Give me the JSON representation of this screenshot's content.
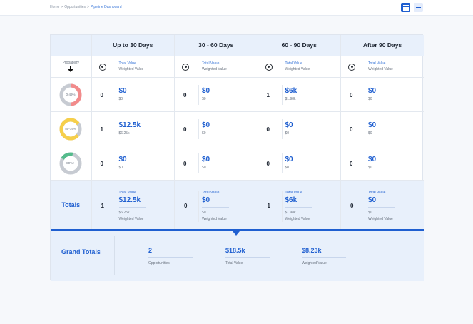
{
  "breadcrumb": {
    "home": "Home",
    "section": "Opportunities",
    "current": "Pipeline Dashboard",
    "sep": ">"
  },
  "view_toggle": {
    "active": "grid",
    "icons": [
      "grid-icon",
      "list-icon"
    ]
  },
  "colors": {
    "accent": "#1f5fd0",
    "red": "#f28b8b",
    "yellow": "#f6cf4a",
    "green": "#55bb8c",
    "track": "#c7cbd2"
  },
  "table": {
    "corner_label": "Probability",
    "buckets": [
      "Up to 30 Days",
      "30 - 60 Days",
      "60 - 90 Days",
      "After 90 Days"
    ],
    "sub_labels": {
      "total_value": "Total Value",
      "weighted_value": "Weighted Value"
    },
    "rows": [
      {
        "band": "0-49%",
        "fill": 0.49,
        "color": "#f28b8b",
        "cells": [
          {
            "count": "0",
            "total": "$0",
            "weighted": "$0"
          },
          {
            "count": "0",
            "total": "$0",
            "weighted": "$0"
          },
          {
            "count": "1",
            "total": "$6k",
            "weighted": "$1.98k"
          },
          {
            "count": "0",
            "total": "$0",
            "weighted": "$0"
          }
        ]
      },
      {
        "band": "50-79%",
        "fill": 0.79,
        "color": "#f6cf4a",
        "cells": [
          {
            "count": "1",
            "total": "$12.5k",
            "weighted": "$6.25k"
          },
          {
            "count": "0",
            "total": "$0",
            "weighted": "$0"
          },
          {
            "count": "0",
            "total": "$0",
            "weighted": "$0"
          },
          {
            "count": "0",
            "total": "$0",
            "weighted": "$0"
          }
        ]
      },
      {
        "band": "80%+",
        "fill": 0.2,
        "color": "#55bb8c",
        "cells": [
          {
            "count": "0",
            "total": "$0",
            "weighted": "$0"
          },
          {
            "count": "0",
            "total": "$0",
            "weighted": "$0"
          },
          {
            "count": "0",
            "total": "$0",
            "weighted": "$0"
          },
          {
            "count": "0",
            "total": "$0",
            "weighted": "$0"
          }
        ]
      }
    ],
    "totals": {
      "label": "Totals",
      "cells": [
        {
          "count": "1",
          "total": "$12.5k",
          "weighted": "$6.25k"
        },
        {
          "count": "0",
          "total": "$0",
          "weighted": "$0"
        },
        {
          "count": "1",
          "total": "$6k",
          "weighted": "$1.98k"
        },
        {
          "count": "0",
          "total": "$0",
          "weighted": "$0"
        }
      ]
    }
  },
  "grand_totals": {
    "label": "Grand Totals",
    "stats": [
      {
        "value": "2",
        "label": "Opportunities"
      },
      {
        "value": "$18.5k",
        "label": "Total Value"
      },
      {
        "value": "$8.23k",
        "label": "Weighted Value"
      }
    ]
  }
}
